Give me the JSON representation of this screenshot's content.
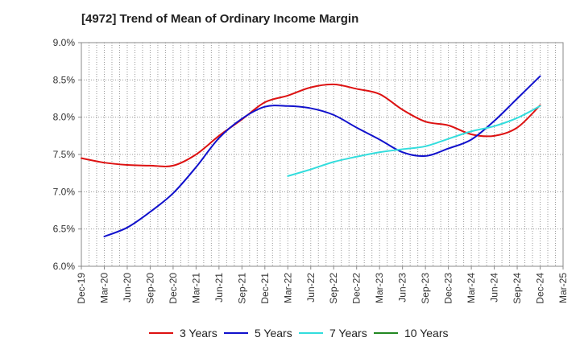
{
  "chart_data": {
    "type": "line",
    "title": "[4972]  Trend of Mean of Ordinary Income Margin",
    "xlabel": "",
    "ylabel": "",
    "ylim": [
      6.0,
      9.0
    ],
    "y_ticks": [
      "6.0%",
      "6.5%",
      "7.0%",
      "7.5%",
      "8.0%",
      "8.5%",
      "9.0%"
    ],
    "y_tick_values": [
      6.0,
      6.5,
      7.0,
      7.5,
      8.0,
      8.5,
      9.0
    ],
    "x_ticks": [
      "Dec-19",
      "Mar-20",
      "Jun-20",
      "Sep-20",
      "Dec-20",
      "Mar-21",
      "Jun-21",
      "Sep-21",
      "Dec-21",
      "Mar-22",
      "Jun-22",
      "Sep-22",
      "Dec-22",
      "Mar-23",
      "Jun-23",
      "Sep-23",
      "Dec-23",
      "Mar-24",
      "Jun-24",
      "Sep-24",
      "Dec-24",
      "Mar-25"
    ],
    "x": [
      "Dec-19",
      "Mar-20",
      "Jun-20",
      "Sep-20",
      "Dec-20",
      "Mar-21",
      "Jun-21",
      "Sep-21",
      "Dec-21",
      "Mar-22",
      "Jun-22",
      "Sep-22",
      "Dec-22",
      "Mar-23",
      "Jun-23",
      "Sep-23",
      "Dec-23",
      "Mar-24",
      "Jun-24",
      "Sep-24",
      "Dec-24"
    ],
    "grid": true,
    "legend_position": "bottom",
    "series": [
      {
        "name": "3 Years",
        "color": "#dd1111",
        "values": [
          7.45,
          7.39,
          7.36,
          7.35,
          7.35,
          7.5,
          7.75,
          7.97,
          8.2,
          8.29,
          8.4,
          8.44,
          8.38,
          8.31,
          8.1,
          7.94,
          7.89,
          7.77,
          7.75,
          7.86,
          8.16
        ]
      },
      {
        "name": "5 Years",
        "color": "#1111cc",
        "values": [
          null,
          6.4,
          6.52,
          6.73,
          6.98,
          7.33,
          7.72,
          7.98,
          8.14,
          8.15,
          8.12,
          8.03,
          7.86,
          7.7,
          7.53,
          7.48,
          7.58,
          7.7,
          7.95,
          8.25,
          8.55
        ]
      },
      {
        "name": "7 Years",
        "color": "#33dddd",
        "values": [
          null,
          null,
          null,
          null,
          null,
          null,
          null,
          null,
          null,
          7.21,
          7.3,
          7.4,
          7.47,
          7.53,
          7.57,
          7.61,
          7.71,
          7.81,
          7.88,
          7.99,
          8.15
        ]
      },
      {
        "name": "10 Years",
        "color": "#228822",
        "values": [
          null,
          null,
          null,
          null,
          null,
          null,
          null,
          null,
          null,
          null,
          null,
          null,
          null,
          null,
          null,
          null,
          null,
          null,
          null,
          null,
          null
        ]
      }
    ]
  }
}
